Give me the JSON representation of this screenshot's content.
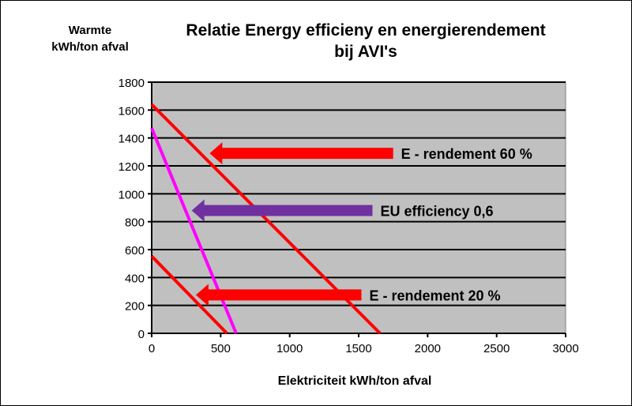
{
  "chart_data": {
    "type": "line",
    "title_lines": [
      "Relatie Energy efficieny en energierendement",
      "bij AVI's"
    ],
    "xlabel": "Elektriciteit kWh/ton afval",
    "ylabel_lines": [
      "Warmte",
      "kWh/ton afval"
    ],
    "xlim": [
      0,
      3000
    ],
    "ylim": [
      0,
      1800
    ],
    "xticks": [
      0,
      500,
      1000,
      1500,
      2000,
      2500,
      3000
    ],
    "yticks": [
      0,
      200,
      400,
      600,
      800,
      1000,
      1200,
      1400,
      1600,
      1800
    ],
    "grid": "horizontal",
    "plot_bg": "#c0c0c0",
    "series": [
      {
        "name": "E - rendement 60 %",
        "color": "#ff0000",
        "points": [
          [
            0,
            1640
          ],
          [
            1655,
            0
          ]
        ],
        "arrow_from": [
          1750,
          1290
        ],
        "arrow_to": [
          420,
          1290
        ],
        "arrow_color": "#ff0000"
      },
      {
        "name": "EU efficiency 0,6",
        "color": "#ff00ff",
        "points": [
          [
            0,
            1470
          ],
          [
            612,
            0
          ]
        ],
        "arrow_from": [
          1600,
          880
        ],
        "arrow_to": [
          290,
          880
        ],
        "arrow_color": "#7030a0"
      },
      {
        "name": "E - rendement 20 %",
        "color": "#ff0000",
        "points": [
          [
            0,
            553
          ],
          [
            545,
            0
          ]
        ],
        "arrow_from": [
          1520,
          275
        ],
        "arrow_to": [
          320,
          275
        ],
        "arrow_color": "#ff0000"
      }
    ]
  }
}
